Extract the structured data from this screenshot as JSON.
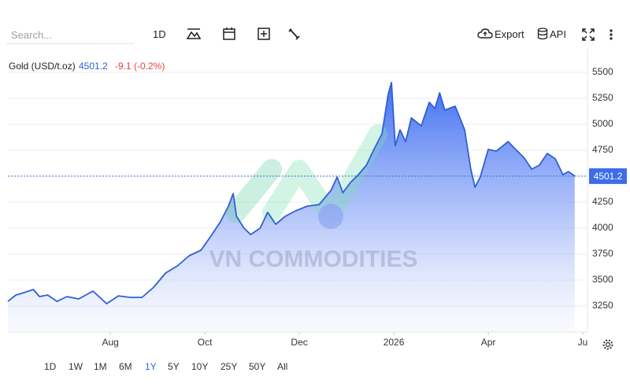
{
  "toolbar": {
    "search_placeholder": "Search...",
    "interval": "1D",
    "export": "Export",
    "api": "API"
  },
  "ranges": [
    "1D",
    "1W",
    "1M",
    "6M",
    "1Y",
    "5Y",
    "10Y",
    "25Y",
    "50Y",
    "All"
  ],
  "selected_range": "1Y",
  "chart_data": {
    "type": "area",
    "watermark": "VN COMMODITIES",
    "last_price": 4501.2,
    "change_label": "-9.1 (-0.2%)",
    "x": [
      -2.17,
      -2,
      -1.83,
      -1.63,
      -1.5,
      -1.33,
      -1.13,
      -0.92,
      -0.67,
      -0.37,
      -0.08,
      0.17,
      0.42,
      0.67,
      0.92,
      1.17,
      1.42,
      1.67,
      1.92,
      2.13,
      2.33,
      2.5,
      2.6,
      2.67,
      2.83,
      2.97,
      3.17,
      3.33,
      3.5,
      3.7,
      3.92,
      4.17,
      4.42,
      4.67,
      4.8,
      4.92,
      5.08,
      5.25,
      5.42,
      5.58,
      5.75,
      5.88,
      5.95,
      6.03,
      6.13,
      6.25,
      6.37,
      6.58,
      6.75,
      6.87,
      6.97,
      7.08,
      7.3,
      7.5,
      7.63,
      7.72,
      7.83,
      8,
      8.17,
      8.42,
      8.58,
      8.75,
      8.92,
      9.08,
      9.25,
      9.42,
      9.58,
      9.7,
      9.83
    ],
    "series": [
      {
        "name": "Gold (USD/t.oz)",
        "color": "#2f5fd6",
        "values": [
          3295,
          3356,
          3379,
          3409,
          3341,
          3356,
          3295,
          3341,
          3318,
          3394,
          3273,
          3348,
          3333,
          3333,
          3432,
          3568,
          3636,
          3735,
          3788,
          3924,
          4061,
          4212,
          4333,
          4114,
          4000,
          3939,
          4000,
          4152,
          4038,
          4114,
          4167,
          4212,
          4227,
          4364,
          4492,
          4341,
          4439,
          4515,
          4606,
          4758,
          4909,
          5288,
          5402,
          4795,
          4947,
          4833,
          5061,
          4985,
          5212,
          5152,
          5303,
          5136,
          5174,
          4947,
          4568,
          4394,
          4492,
          4758,
          4742,
          4833,
          4758,
          4682,
          4568,
          4606,
          4720,
          4667,
          4515,
          4545,
          4501.2
        ]
      }
    ],
    "xlim": [
      -2.17,
      10.1
    ],
    "xticks": [
      {
        "value": 0,
        "label": "Aug"
      },
      {
        "value": 2,
        "label": "Oct"
      },
      {
        "value": 4,
        "label": "Dec"
      },
      {
        "value": 6,
        "label": "2026"
      },
      {
        "value": 8,
        "label": "Apr"
      },
      {
        "value": 10,
        "label": "Ju"
      }
    ],
    "ylim": [
      3000,
      5750
    ],
    "yticks": [
      3250,
      3500,
      3750,
      4000,
      4250,
      4500,
      4750,
      5000,
      5250,
      5500
    ],
    "grid": true
  }
}
